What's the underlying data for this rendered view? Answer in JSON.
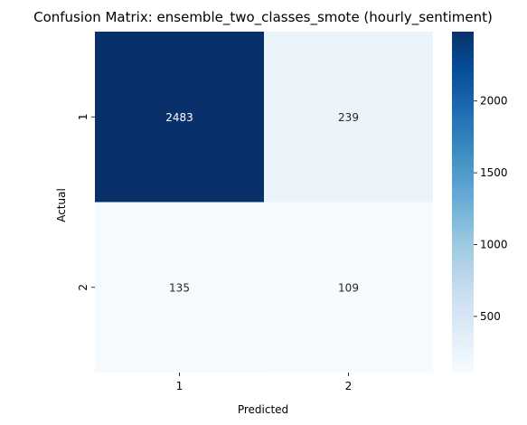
{
  "chart_data": {
    "type": "heatmap",
    "title": "Confusion Matrix: ensemble_two_classes_smote (hourly_sentiment)",
    "xlabel": "Predicted",
    "ylabel": "Actual",
    "x_categories": [
      "1",
      "2"
    ],
    "y_categories": [
      "1",
      "2"
    ],
    "values": [
      [
        2483,
        239
      ],
      [
        135,
        109
      ]
    ],
    "colormap": "Blues",
    "colorbar": {
      "min": 109,
      "max": 2483,
      "ticks": [
        500,
        1000,
        1500,
        2000
      ]
    }
  }
}
